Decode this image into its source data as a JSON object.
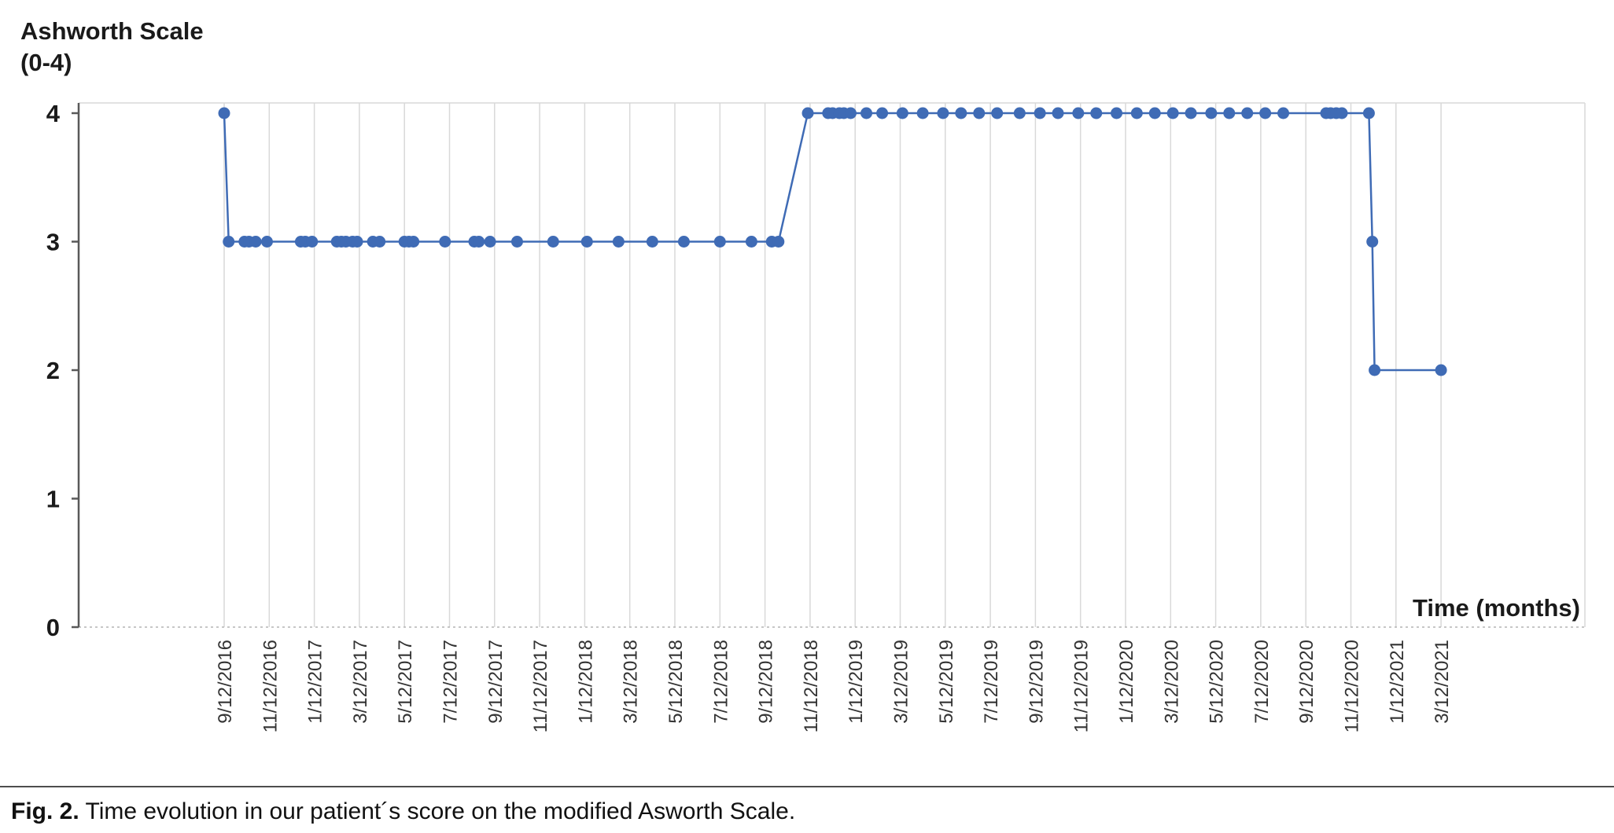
{
  "page": {
    "caption_prefix": "Fig. 2.",
    "caption_text": "Time evolution in our patient´s score on the modified Asworth Scale."
  },
  "chart_data": {
    "type": "line",
    "title": "Ashworth Scale",
    "title_sub": "(0-4)",
    "xlabel": "Time (months)",
    "ylabel": "Ashworth Scale (0-4)",
    "ylim": [
      0,
      4
    ],
    "y_ticks": [
      0,
      1,
      2,
      3,
      4
    ],
    "grid": "vertical-only",
    "legend": "none",
    "x_tick_interval_months": 2,
    "x_tick_labels": [
      "9/12/2016",
      "11/12/2016",
      "1/12/2017",
      "3/12/2017",
      "5/12/2017",
      "7/12/2017",
      "9/12/2017",
      "11/12/2017",
      "1/12/2018",
      "3/12/2018",
      "5/12/2018",
      "7/12/2018",
      "9/12/2018",
      "11/12/2018",
      "1/12/2019",
      "3/12/2019",
      "5/12/2019",
      "7/12/2019",
      "9/12/2019",
      "11/12/2019",
      "1/12/2020",
      "3/12/2020",
      "5/12/2020",
      "7/12/2020",
      "9/12/2020",
      "11/12/2020",
      "1/12/2021",
      "3/12/2021"
    ],
    "points_x_unit": "months after 9/12/2016",
    "series": [
      {
        "name": "Modified Ashworth Scale score",
        "color": "#3F6BB5",
        "points": [
          [
            0,
            4
          ],
          [
            0.2,
            3
          ],
          [
            0.9,
            3
          ],
          [
            1.1,
            3
          ],
          [
            1.4,
            3
          ],
          [
            1.9,
            3
          ],
          [
            3.4,
            3
          ],
          [
            3.6,
            3
          ],
          [
            3.9,
            3
          ],
          [
            5.0,
            3
          ],
          [
            5.2,
            3
          ],
          [
            5.4,
            3
          ],
          [
            5.7,
            3
          ],
          [
            5.9,
            3
          ],
          [
            6.6,
            3
          ],
          [
            6.9,
            3
          ],
          [
            8.0,
            3
          ],
          [
            8.2,
            3
          ],
          [
            8.4,
            3
          ],
          [
            9.8,
            3
          ],
          [
            11.1,
            3
          ],
          [
            11.3,
            3
          ],
          [
            11.8,
            3
          ],
          [
            13.0,
            3
          ],
          [
            14.6,
            3
          ],
          [
            16.1,
            3
          ],
          [
            17.5,
            3
          ],
          [
            19.0,
            3
          ],
          [
            20.4,
            3
          ],
          [
            22.0,
            3
          ],
          [
            23.4,
            3
          ],
          [
            24.3,
            3
          ],
          [
            24.6,
            3
          ],
          [
            25.9,
            4
          ],
          [
            26.8,
            4
          ],
          [
            27.0,
            4
          ],
          [
            27.3,
            4
          ],
          [
            27.5,
            4
          ],
          [
            27.8,
            4
          ],
          [
            28.5,
            4
          ],
          [
            29.2,
            4
          ],
          [
            30.1,
            4
          ],
          [
            31.0,
            4
          ],
          [
            31.9,
            4
          ],
          [
            32.7,
            4
          ],
          [
            33.5,
            4
          ],
          [
            34.3,
            4
          ],
          [
            35.3,
            4
          ],
          [
            36.2,
            4
          ],
          [
            37.0,
            4
          ],
          [
            37.9,
            4
          ],
          [
            38.7,
            4
          ],
          [
            39.6,
            4
          ],
          [
            40.5,
            4
          ],
          [
            41.3,
            4
          ],
          [
            42.1,
            4
          ],
          [
            42.9,
            4
          ],
          [
            43.8,
            4
          ],
          [
            44.6,
            4
          ],
          [
            45.4,
            4
          ],
          [
            46.2,
            4
          ],
          [
            47.0,
            4
          ],
          [
            48.9,
            4
          ],
          [
            49.1,
            4
          ],
          [
            49.35,
            4
          ],
          [
            49.6,
            4
          ],
          [
            50.8,
            4
          ],
          [
            50.95,
            3
          ],
          [
            51.05,
            2
          ],
          [
            54,
            2
          ]
        ]
      }
    ],
    "colors": {
      "series": "#3F6BB5",
      "gridline": "#d9d9d9",
      "axis_dashed": "#b3b3b3",
      "axis_solid": "#595959",
      "tick_label": "#333333",
      "text": "#1a1a1a"
    }
  }
}
